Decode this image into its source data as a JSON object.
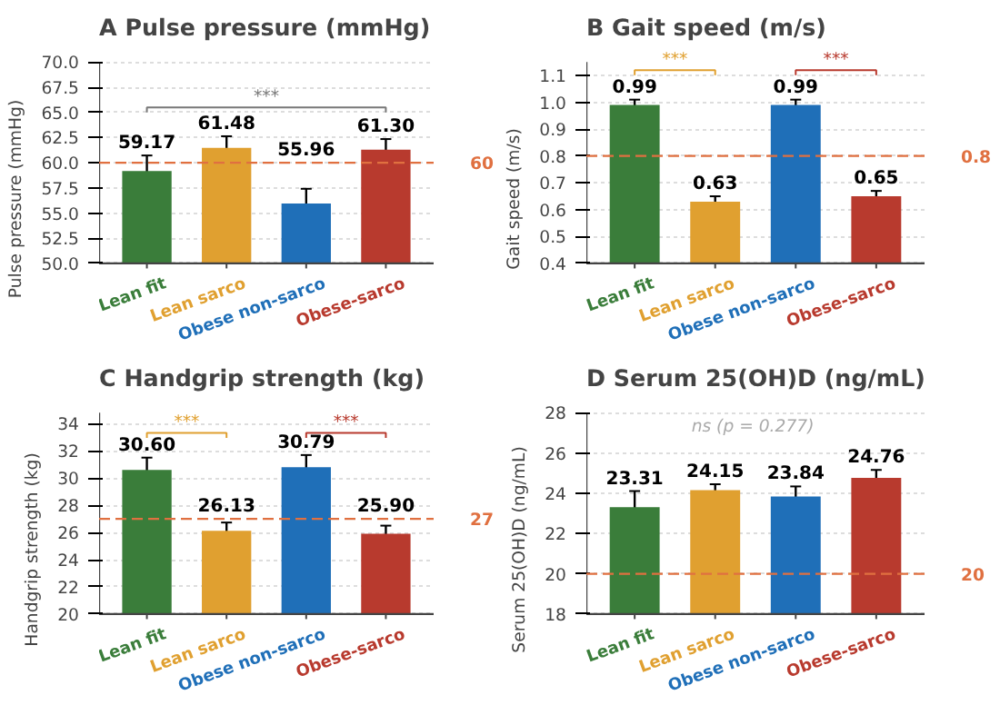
{
  "chart_data": [
    {
      "type": "bar",
      "title": "A   Pulse pressure (mmHg)",
      "ylabel": "Pulse pressure (mmHg)",
      "categories": [
        "Lean fit",
        "Lean sarco",
        "Obese non-sarco",
        "Obese-sarco"
      ],
      "values": [
        59.17,
        61.48,
        55.96,
        61.3
      ],
      "colors": [
        "#3a7d3a",
        "#e0a030",
        "#1f6fb8",
        "#b83a2e"
      ],
      "errors": [
        1.55,
        1.15,
        1.45,
        1.05
      ],
      "value_labels": [
        "59.17",
        "61.48",
        "55.96",
        "61.30"
      ],
      "ylim": [
        50,
        70
      ],
      "yticks": [
        {
          "value": 50,
          "label": "50.0"
        },
        {
          "value": 52.5,
          "label": "52.5"
        },
        {
          "value": 55,
          "label": "55.0"
        },
        {
          "value": 57.5,
          "label": "57.5"
        },
        {
          "value": 60,
          "label": "60.0"
        },
        {
          "value": 62.5,
          "label": "62.5"
        },
        {
          "value": 65,
          "label": "65.0"
        },
        {
          "value": 67.5,
          "label": "67.5"
        },
        {
          "value": 70,
          "label": "70.0"
        }
      ],
      "ref_lines": [
        {
          "axis": "y",
          "value": 60,
          "label": "60",
          "color": "#e07040",
          "line_style": "dashed"
        }
      ],
      "annotations": [
        "***"
      ],
      "grid": "y"
    },
    {
      "type": "bar",
      "title": "B   Gait speed (m/s)",
      "ylabel": "Gait speed (m/s)",
      "categories": [
        "Lean fit",
        "Lean sarco",
        "Obese non-sarco",
        "Obese-sarco"
      ],
      "values": [
        0.99,
        0.63,
        0.99,
        0.65
      ],
      "colors": [
        "#3a7d3a",
        "#e0a030",
        "#1f6fb8",
        "#b83a2e"
      ],
      "errors": [
        0.02,
        0.02,
        0.02,
        0.02
      ],
      "value_labels": [
        "0.99",
        "0.63",
        "0.99",
        "0.65"
      ],
      "ylim": [
        0.4,
        1.15
      ],
      "yticks": [
        {
          "value": 0.4,
          "label": "0.4"
        },
        {
          "value": 0.5,
          "label": "0.5"
        },
        {
          "value": 0.6,
          "label": "0.6"
        },
        {
          "value": 0.7,
          "label": "0.7"
        },
        {
          "value": 0.8,
          "label": "0.8"
        },
        {
          "value": 0.9,
          "label": "0.9"
        },
        {
          "value": 1.0,
          "label": "1.0"
        },
        {
          "value": 1.1,
          "label": "1.1"
        }
      ],
      "ref_lines": [
        {
          "axis": "y",
          "value": 0.8,
          "label": "0.8",
          "color": "#e07040",
          "line_style": "dashed"
        }
      ],
      "annotations": [
        "***",
        "***"
      ],
      "grid": "y"
    },
    {
      "type": "bar",
      "title": "C   Handgrip strength (kg)",
      "ylabel": "Handgrip strength (kg)",
      "categories": [
        "Lean fit",
        "Lean sarco",
        "Obese non-sarco",
        "Obese-sarco"
      ],
      "values": [
        30.6,
        26.13,
        30.79,
        25.9
      ],
      "colors": [
        "#3a7d3a",
        "#e0a030",
        "#1f6fb8",
        "#b83a2e"
      ],
      "errors": [
        0.9,
        0.6,
        0.9,
        0.6
      ],
      "value_labels": [
        "30.60",
        "26.13",
        "30.79",
        "25.90"
      ],
      "ylim": [
        20,
        34.8
      ],
      "yticks": [
        20,
        22,
        24,
        26,
        28,
        30,
        32,
        34
      ],
      "ref_lines": [
        {
          "axis": "y",
          "value": 27,
          "label": "27",
          "color": "#e07040",
          "line_style": "dashed"
        }
      ],
      "annotations": [
        "***",
        "***"
      ],
      "grid": "y"
    },
    {
      "type": "bar",
      "title": "D   Serum 25(OH)D (ng/mL)",
      "ylabel": "Serum 25(OH)D (ng/mL)",
      "categories": [
        "Lean fit",
        "Lean sarco",
        "Obese non-sarco",
        "Obese-sarco"
      ],
      "values": [
        23.31,
        24.15,
        23.84,
        24.76
      ],
      "colors": [
        "#3a7d3a",
        "#e0a030",
        "#1f6fb8",
        "#b83a2e"
      ],
      "errors": [
        0.8,
        0.3,
        0.5,
        0.4
      ],
      "value_labels": [
        "23.31",
        "24.15",
        "23.84",
        "24.76"
      ],
      "ylim": [
        18,
        28
      ],
      "yticks": [
        18,
        20,
        22,
        24,
        26,
        28
      ],
      "ref_lines": [
        {
          "axis": "y",
          "value": 20,
          "label": "20",
          "color": "#e07040",
          "line_style": "dashed"
        }
      ],
      "annotations": [
        "ns  (p = 0.277)"
      ],
      "grid": "y"
    }
  ]
}
